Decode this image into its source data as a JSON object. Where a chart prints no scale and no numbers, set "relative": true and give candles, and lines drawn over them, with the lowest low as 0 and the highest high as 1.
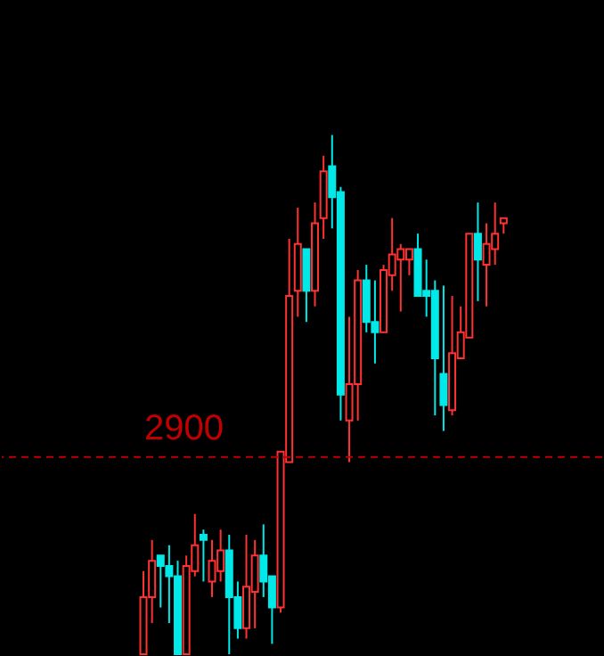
{
  "chart_data": {
    "type": "candlestick",
    "relative": true,
    "tick_labels": false,
    "annotations": [
      "2900"
    ],
    "categories": [
      null,
      null,
      null,
      null,
      null,
      null,
      null,
      null,
      null,
      null,
      null,
      null,
      null,
      null,
      null,
      null,
      null,
      null,
      null,
      null,
      null,
      null,
      null,
      null,
      null,
      null,
      null,
      null,
      null,
      null,
      null,
      null,
      null,
      null,
      null,
      null,
      null,
      null,
      null,
      null,
      null,
      null,
      null
    ],
    "ohlc": [
      [
        0,
        0.16,
        0,
        0.11
      ],
      [
        0.11,
        0.22,
        0.06,
        0.18
      ],
      [
        0.19,
        0.19,
        0.09,
        0.17
      ],
      [
        0.17,
        0.21,
        0.06,
        0.15
      ],
      [
        0.15,
        0.18,
        0,
        0
      ],
      [
        0,
        0.19,
        0,
        0.17
      ],
      [
        0.16,
        0.27,
        0.15,
        0.21
      ],
      [
        0.23,
        0.24,
        0.14,
        0.22
      ],
      [
        0.14,
        0.22,
        0.11,
        0.18
      ],
      [
        0.16,
        0.24,
        0.14,
        0.2
      ],
      [
        0.2,
        0.23,
        0,
        0.11
      ],
      [
        0.11,
        0.14,
        0.03,
        0.05
      ],
      [
        0.05,
        0.23,
        0.03,
        0.13
      ],
      [
        0.12,
        0.22,
        0.05,
        0.19
      ],
      [
        0.19,
        0.25,
        0.11,
        0.14
      ],
      [
        0.15,
        0.15,
        0.02,
        0.09
      ],
      [
        0.09,
        0.39,
        0.08,
        0.39
      ],
      [
        0.37,
        0.8,
        0.37,
        0.69
      ],
      [
        0.7,
        0.86,
        0.65,
        0.79
      ],
      [
        0.78,
        0.78,
        0.64,
        0.7
      ],
      [
        0.7,
        0.87,
        0.67,
        0.83
      ],
      [
        0.84,
        0.96,
        0.8,
        0.93
      ],
      [
        0.94,
        1,
        0.82,
        0.88
      ],
      [
        0.89,
        0.9,
        0.45,
        0.5
      ],
      [
        0.45,
        0.65,
        0.37,
        0.52
      ],
      [
        0.52,
        0.74,
        0.45,
        0.72
      ],
      [
        0.72,
        0.75,
        0.62,
        0.64
      ],
      [
        0.64,
        0.72,
        0.56,
        0.62
      ],
      [
        0.62,
        0.75,
        0.62,
        0.74
      ],
      [
        0.73,
        0.84,
        0.7,
        0.77
      ],
      [
        0.76,
        0.79,
        0.66,
        0.78
      ],
      [
        0.76,
        0.78,
        0.73,
        0.78
      ],
      [
        0.78,
        0.81,
        0.69,
        0.69
      ],
      [
        0.7,
        0.76,
        0.65,
        0.69
      ],
      [
        0.7,
        0.72,
        0.46,
        0.57
      ],
      [
        0.54,
        0.71,
        0.43,
        0.48
      ],
      [
        0.47,
        0.69,
        0.46,
        0.58
      ],
      [
        0.57,
        0.67,
        0.57,
        0.62
      ],
      [
        0.61,
        0.81,
        0.61,
        0.81
      ],
      [
        0.81,
        0.87,
        0.68,
        0.76
      ],
      [
        0.75,
        0.83,
        0.67,
        0.79
      ],
      [
        0.78,
        0.87,
        0.75,
        0.81
      ],
      [
        0.83,
        0.84,
        0.81,
        0.84
      ]
    ],
    "ref_lines": [
      {
        "axis": "y",
        "value": 0.38,
        "color": "#c00000",
        "line_style": "dashed"
      }
    ]
  }
}
